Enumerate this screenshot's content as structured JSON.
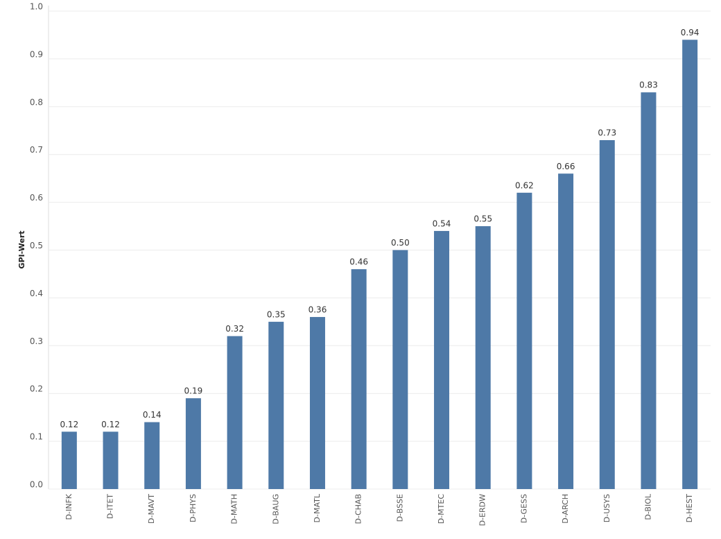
{
  "chart_data": {
    "type": "bar",
    "y_label": "GPI-Wert",
    "categories": [
      "D-INFK",
      "D-ITET",
      "D-MAVT",
      "D-PHYS",
      "D-MATH",
      "D-BAUG",
      "D-MATL",
      "D-CHAB",
      "D-BSSE",
      "D-MTEC",
      "D-ERDW",
      "D-GESS",
      "D-ARCH",
      "D-USYS",
      "D-BIOL",
      "D-HEST"
    ],
    "values": [
      0.12,
      0.12,
      0.14,
      0.19,
      0.32,
      0.35,
      0.36,
      0.46,
      0.5,
      0.54,
      0.55,
      0.62,
      0.66,
      0.73,
      0.83,
      0.94
    ],
    "value_labels": [
      "0.12",
      "0.12",
      "0.14",
      "0.19",
      "0.32",
      "0.35",
      "0.36",
      "0.46",
      "0.50",
      "0.54",
      "0.55",
      "0.62",
      "0.66",
      "0.73",
      "0.83",
      "0.94"
    ],
    "color": "#4e79a7",
    "ylim": [
      0,
      1.0
    ],
    "yticks": [
      {
        "value": 0,
        "label": "0.0"
      },
      {
        "value": 0.1,
        "label": "0.1"
      },
      {
        "value": 0.2,
        "label": "0.2"
      },
      {
        "value": 0.3,
        "label": "0.3"
      },
      {
        "value": 0.4,
        "label": "0.4"
      },
      {
        "value": 0.5,
        "label": "0.5"
      },
      {
        "value": 0.6,
        "label": "0.6"
      },
      {
        "value": 0.7,
        "label": "0.7"
      },
      {
        "value": 0.8,
        "label": "0.8"
      },
      {
        "value": 0.9,
        "label": "0.9"
      },
      {
        "value": 1.0,
        "label": "1.0"
      }
    ],
    "grid": true
  }
}
